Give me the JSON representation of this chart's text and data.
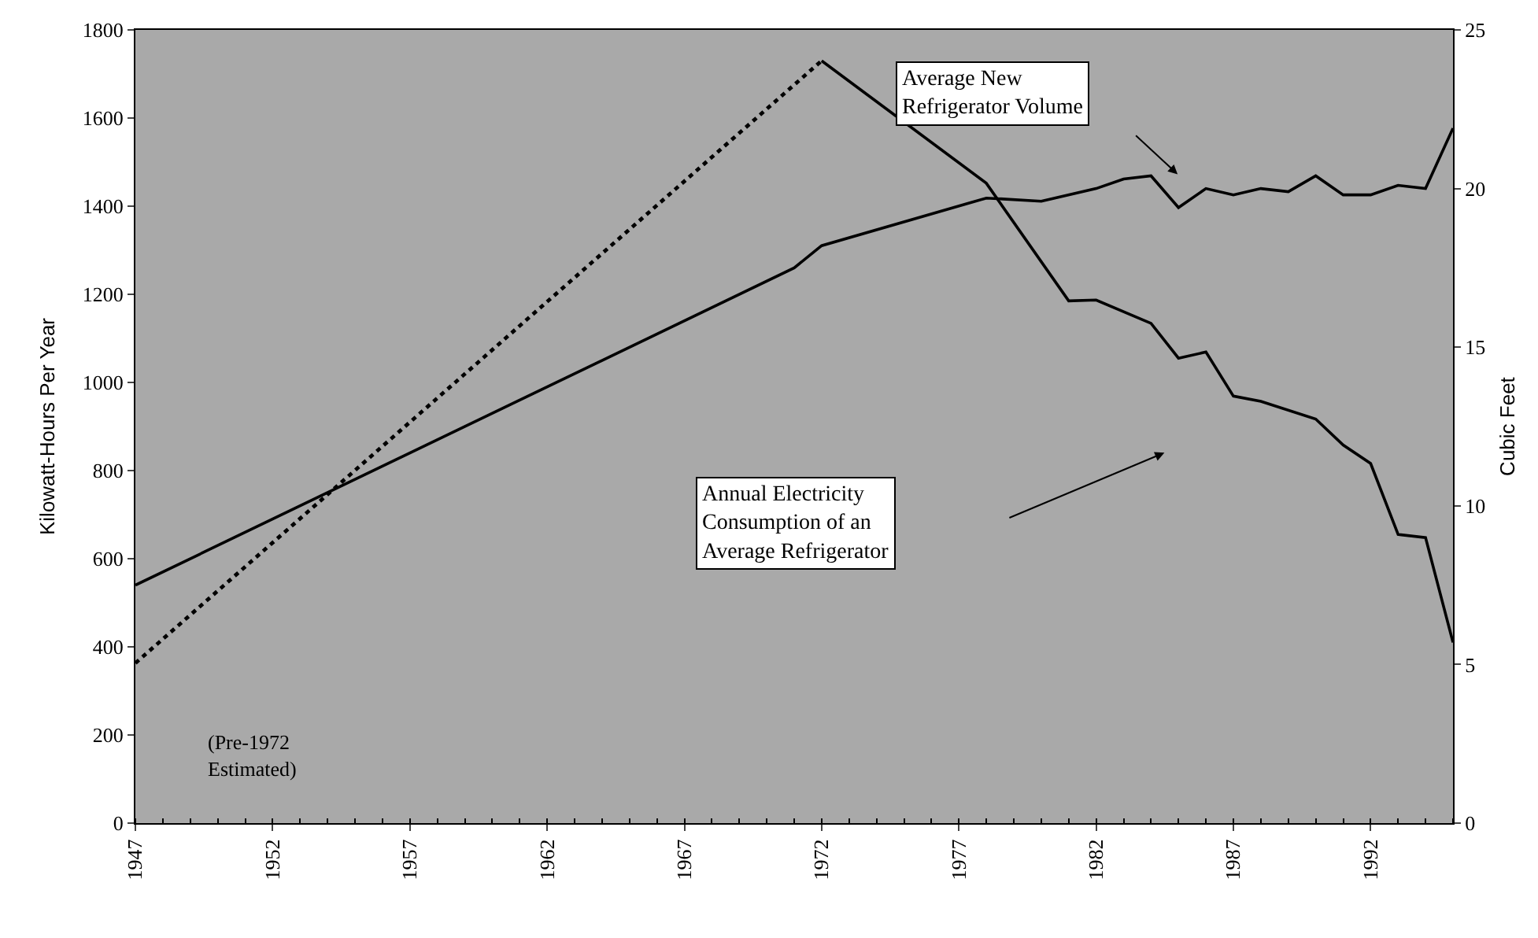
{
  "chart_data": {
    "type": "line",
    "ylabel": "Kilowatt-Hours Per Year",
    "y2label": "Cubic Feet",
    "xlim": [
      1947,
      1995
    ],
    "xticks": [
      1947,
      1952,
      1957,
      1962,
      1967,
      1972,
      1977,
      1982,
      1987,
      1992
    ],
    "ylim": [
      0,
      1800
    ],
    "yticks": [
      0,
      200,
      400,
      600,
      800,
      1000,
      1200,
      1400,
      1600,
      1800
    ],
    "y2lim": [
      0,
      25
    ],
    "y2ticks": [
      0,
      5,
      10,
      15,
      20,
      25
    ],
    "grid": false,
    "marker": "none",
    "series": [
      {
        "color": "#000000",
        "line_style": "dotted",
        "x": [
          1947,
          1972
        ],
        "values": [
          363,
          1730
        ]
      },
      {
        "color": "#000000",
        "line_style": "solid",
        "x": [
          1972,
          1978,
          1981,
          1982,
          1984,
          1985,
          1986,
          1987,
          1988,
          1990,
          1991,
          1992,
          1993,
          1994,
          1995
        ],
        "values": [
          1730,
          1452,
          1185,
          1187,
          1134,
          1055,
          1069,
          969,
          957,
          917,
          858,
          816,
          655,
          648,
          410
        ]
      },
      {
        "color": "#000000",
        "line_style": "solid",
        "axis": "y2",
        "x": [
          1947,
          1971,
          1972,
          1978,
          1980,
          1982,
          1983,
          1984,
          1985,
          1986,
          1987,
          1988,
          1989,
          1990,
          1991,
          1992,
          1993,
          1994,
          1995
        ],
        "values": [
          7.5,
          17.5,
          18.2,
          19.7,
          19.6,
          20.0,
          20.3,
          20.4,
          19.4,
          20.0,
          19.8,
          20.0,
          19.9,
          20.4,
          19.8,
          19.8,
          20.1,
          20.0,
          21.9
        ]
      }
    ],
    "annotations": [
      "Average New\nRefrigerator Volume",
      "Annual Electricity\nConsumption of an\nAverage Refrigerator",
      "(Pre-1972\nEstimated)"
    ]
  }
}
